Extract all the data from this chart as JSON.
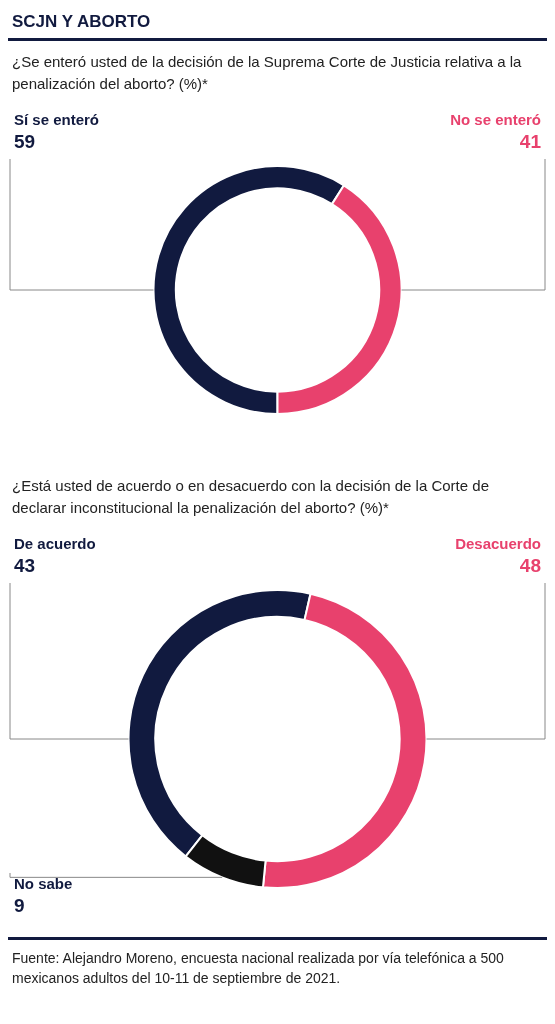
{
  "chart_data": [
    {
      "type": "donut",
      "title": "SCJN Y ABORTO",
      "subtitle": "¿Se enteró usted de la decisión de la Suprema Corte de Justicia relativa a la penalización del aborto? (%)*",
      "categories": [
        "Sí se enteró",
        "No se enteró"
      ],
      "values": [
        59,
        41
      ],
      "colors": [
        "#111a3f",
        "#e8416d"
      ],
      "data_labels": true
    },
    {
      "type": "donut",
      "title": "¿Está usted de acuerdo o en desacuerdo con la decisión de la Corte de declarar inconstitucional la penalización del aborto? (%)*",
      "categories": [
        "De acuerdo",
        "Desacuerdo",
        "No sabe"
      ],
      "values": [
        43,
        48,
        9
      ],
      "colors": [
        "#111a3f",
        "#e8416d",
        "#111111"
      ],
      "data_labels": true,
      "annotations": [
        "Fuente: Alejandro Moreno, encuesta nacional realizada por vía telefónica a 500 mexicanos adultos del 10-11 de septiembre de 2021."
      ]
    }
  ]
}
